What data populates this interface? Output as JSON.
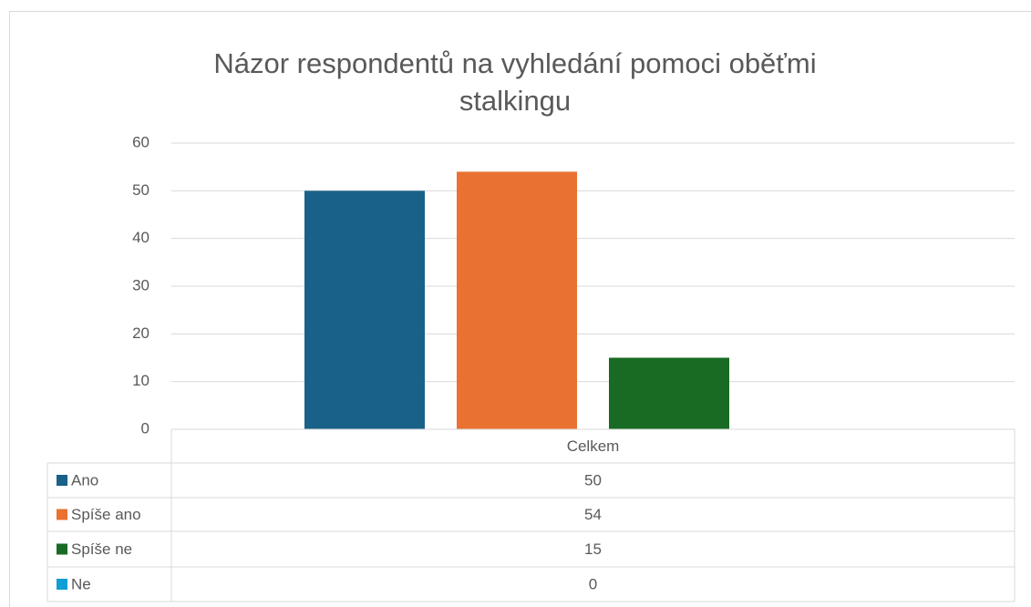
{
  "chart_data": {
    "type": "bar",
    "title": "Názor respondentů na vyhledání pomoci oběťmi stalkingu",
    "categories": [
      "Celkem"
    ],
    "series": [
      {
        "name": "Ano",
        "color": "#196188",
        "values": [
          50
        ]
      },
      {
        "name": "Spíše ano",
        "color": "#e97132",
        "values": [
          54
        ]
      },
      {
        "name": "Spíše ne",
        "color": "#196b24",
        "values": [
          15
        ]
      },
      {
        "name": "Ne",
        "color": "#0f9ed5",
        "values": [
          0
        ]
      }
    ],
    "ylim": [
      0,
      60
    ],
    "yticks": [
      0,
      10,
      20,
      30,
      40,
      50,
      60
    ],
    "grid": true,
    "data_table": true
  }
}
